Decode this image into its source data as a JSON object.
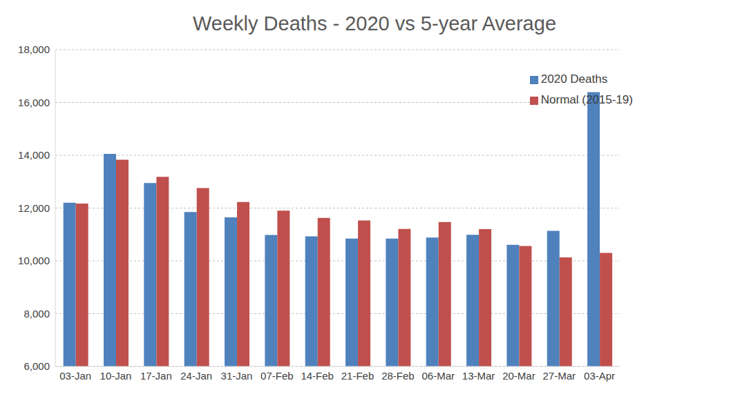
{
  "chart_data": {
    "type": "bar",
    "title": "Weekly Deaths - 2020 vs 5-year Average",
    "categories": [
      "03-Jan",
      "10-Jan",
      "17-Jan",
      "24-Jan",
      "31-Jan",
      "07-Feb",
      "14-Feb",
      "21-Feb",
      "28-Feb",
      "06-Mar",
      "13-Mar",
      "20-Mar",
      "27-Mar",
      "03-Apr"
    ],
    "series": [
      {
        "name": "2020 Deaths",
        "color": "#4f81bd",
        "values": [
          12200,
          14050,
          12950,
          11850,
          11650,
          10980,
          10930,
          10840,
          10840,
          10880,
          10990,
          10610,
          11140,
          16390
        ]
      },
      {
        "name": "Normal (2015-19)",
        "color": "#c0504d",
        "values": [
          12170,
          13830,
          13180,
          12760,
          12230,
          11900,
          11630,
          11530,
          11210,
          11470,
          11200,
          10560,
          10130,
          10300
        ]
      }
    ],
    "ylim": [
      6000,
      18000
    ],
    "yticks": [
      {
        "value": 6000,
        "label": "6,000"
      },
      {
        "value": 8000,
        "label": "8,000"
      },
      {
        "value": 10000,
        "label": "10,000"
      },
      {
        "value": 12000,
        "label": "12,000"
      },
      {
        "value": 14000,
        "label": "14,000"
      },
      {
        "value": 16000,
        "label": "16,000"
      },
      {
        "value": 18000,
        "label": "18,000"
      }
    ],
    "grid": true,
    "legend": "top-right"
  }
}
